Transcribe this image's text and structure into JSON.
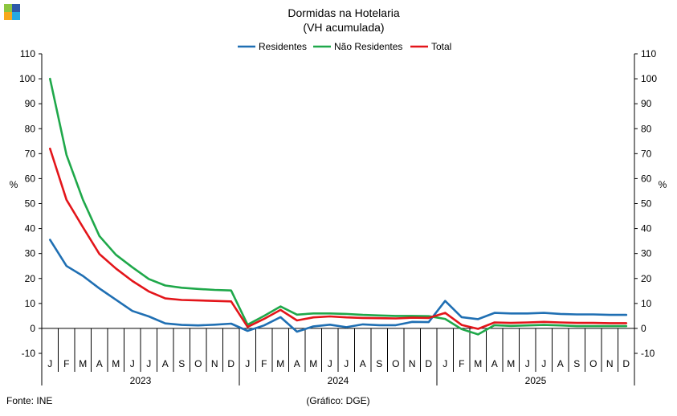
{
  "chart_data": {
    "type": "line",
    "title": "Dormidas na Hotelaria",
    "subtitle": "(VH acumulada)",
    "ylabel_left": "%",
    "ylabel_right": "%",
    "ylim": [
      -10,
      110
    ],
    "yticks": [
      -10,
      0,
      10,
      20,
      30,
      40,
      50,
      60,
      70,
      80,
      90,
      100,
      110
    ],
    "grid": false,
    "legend_position": "top-center",
    "month_labels": [
      "J",
      "F",
      "M",
      "A",
      "M",
      "J",
      "J",
      "A",
      "S",
      "O",
      "N",
      "D",
      "J",
      "F",
      "M",
      "A",
      "M",
      "J",
      "J",
      "A",
      "S",
      "O",
      "N",
      "D",
      "J",
      "F",
      "M",
      "A",
      "M",
      "J",
      "J",
      "A",
      "S",
      "O",
      "N",
      "D"
    ],
    "years": [
      "2023",
      "2024",
      "2025"
    ],
    "series": [
      {
        "name": "Residentes",
        "color": "#1f6fb3",
        "values": [
          35.5,
          25.0,
          21.0,
          16.0,
          11.5,
          7.0,
          4.8,
          2.0,
          1.4,
          1.2,
          1.5,
          1.9,
          -1.0,
          1.2,
          4.5,
          -1.3,
          0.8,
          1.5,
          0.5,
          1.6,
          1.3,
          1.3,
          2.6,
          2.5,
          11.0,
          4.5,
          3.7,
          6.2,
          6.0,
          6.0,
          6.2,
          5.8,
          5.6,
          5.6,
          5.4,
          5.4
        ]
      },
      {
        "name": "Não Residentes",
        "color": "#1fa84a",
        "values": [
          100.0,
          69.5,
          51.5,
          37.0,
          29.5,
          24.5,
          19.8,
          17.2,
          16.3,
          15.8,
          15.4,
          15.2,
          1.5,
          5.0,
          8.8,
          5.5,
          6.0,
          6.0,
          5.8,
          5.4,
          5.2,
          5.0,
          5.0,
          4.9,
          3.8,
          -0.3,
          -2.4,
          1.3,
          1.0,
          1.2,
          1.4,
          1.2,
          0.9,
          0.9,
          0.9,
          0.9
        ]
      },
      {
        "name": "Total",
        "color": "#e3151a",
        "values": [
          72.0,
          51.5,
          40.5,
          29.8,
          24.0,
          19.0,
          14.8,
          12.0,
          11.4,
          11.2,
          11.0,
          10.8,
          0.6,
          3.8,
          7.4,
          3.2,
          4.4,
          4.8,
          4.4,
          4.2,
          4.1,
          4.0,
          4.3,
          4.2,
          6.2,
          1.4,
          -0.2,
          2.4,
          2.2,
          2.4,
          2.6,
          2.4,
          2.2,
          2.2,
          2.1,
          2.1
        ]
      }
    ]
  },
  "footer": {
    "source": "Fonte: INE",
    "credit": "(Gráfico: DGE)"
  },
  "logo": {
    "colors": [
      "#8cc63f",
      "#2e5aa8",
      "#f7a81b",
      "#26a9e0"
    ]
  }
}
